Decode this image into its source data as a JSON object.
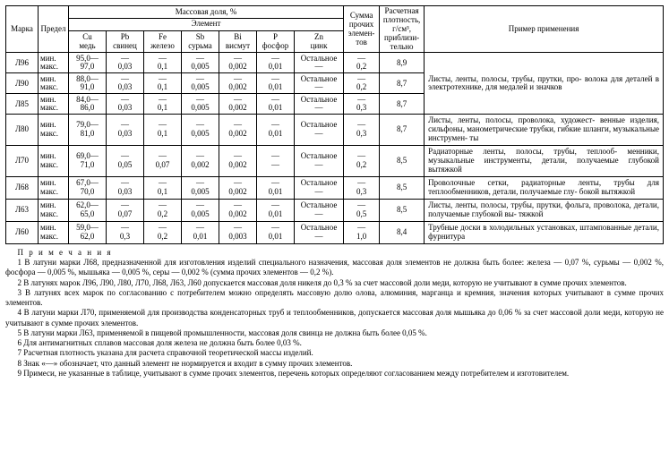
{
  "headers": {
    "marka": "Марка",
    "predel": "Предел",
    "mass_fraction": "Массовая доля, %",
    "element": "Элемент",
    "sum_other": "Сумма прочих элемен-\nтов",
    "density": "Расчетная плотность, г/см³, приблизи-\nтельно",
    "application": "Пример применения",
    "cols": {
      "cu": {
        "sym": "Cu",
        "name": "медь"
      },
      "pb": {
        "sym": "Pb",
        "name": "свинец"
      },
      "fe": {
        "sym": "Fe",
        "name": "железо"
      },
      "sb": {
        "sym": "Sb",
        "name": "сурьма"
      },
      "bi": {
        "sym": "Bi",
        "name": "висмут"
      },
      "p": {
        "sym": "P",
        "name": "фосфор"
      },
      "zn": {
        "sym": "Zn",
        "name": "цинк"
      }
    },
    "min": "мин.",
    "max": "макс."
  },
  "rows": [
    {
      "marka": "Л96",
      "cu_min": "95,0—",
      "cu_max": "97,0",
      "pb": "—\n0,03",
      "fe": "—\n0,1",
      "sb": "—\n0,005",
      "bi": "—\n0,002",
      "p": "—\n0,01",
      "zn": "Остальное\n—",
      "sum": "—\n0,2",
      "dens": "8,9",
      "app_rowspan": 3,
      "app": "Листы, ленты, полосы, трубы, прутки, про-\nволока для деталей в электротехнике, для медалей и значков"
    },
    {
      "marka": "Л90",
      "cu_min": "88,0—",
      "cu_max": "91,0",
      "pb": "—\n0,03",
      "fe": "—\n0,1",
      "sb": "—\n0,005",
      "bi": "—\n0,002",
      "p": "—\n0,01",
      "zn": "Остальное\n—",
      "sum": "—\n0,2",
      "dens": "8,7"
    },
    {
      "marka": "Л85",
      "cu_min": "84,0—",
      "cu_max": "86,0",
      "pb": "—\n0,03",
      "fe": "—\n0,1",
      "sb": "—\n0,005",
      "bi": "—\n0,002",
      "p": "—\n0,01",
      "zn": "Остальное\n—",
      "sum": "—\n0,3",
      "dens": "8,7"
    },
    {
      "marka": "Л80",
      "cu_min": "79,0—",
      "cu_max": "81,0",
      "pb": "—\n0,03",
      "fe": "—\n0,1",
      "sb": "—\n0,005",
      "bi": "—\n0,002",
      "p": "—\n0,01",
      "zn": "Остальное\n—",
      "sum": "—\n0,3",
      "dens": "8,7",
      "app": "Листы, ленты, полосы, проволока, художест-\nвенные изделия, сильфоны, манометрические трубки, гибкие шланги, музыкальные инструмен-\nты"
    },
    {
      "marka": "Л70",
      "cu_min": "69,0—",
      "cu_max": "71,0",
      "pb": "—\n0,05",
      "fe": "—\n0,07",
      "sb": "—\n0,002",
      "bi": "—\n0,002",
      "p": "—\n—",
      "zn": "Остальное\n—",
      "sum": "—\n0,2",
      "dens": "8,5",
      "app": "Радиаторные ленты, полосы, трубы, теплооб-\nменники, музыкальные инструменты, детали, получаемые глубокой вытяжкой"
    },
    {
      "marka": "Л68",
      "cu_min": "67,0—",
      "cu_max": "70,0",
      "pb": "—\n0,03",
      "fe": "—\n0,1",
      "sb": "—\n0,005",
      "bi": "—\n0,002",
      "p": "—\n0,01",
      "zn": "Остальное\n—",
      "sum": "—\n0,3",
      "dens": "8,5",
      "app": "Проволочные сетки, радиаторные ленты, трубы для теплообменников, детали, получаемые глу-\nбокой вытяжкой"
    },
    {
      "marka": "Л63",
      "cu_min": "62,0—",
      "cu_max": "65,0",
      "pb": "—\n0,07",
      "fe": "—\n0,2",
      "sb": "—\n0,005",
      "bi": "—\n0,002",
      "p": "—\n0,01",
      "zn": "Остальное\n—",
      "sum": "—\n0,5",
      "dens": "8,5",
      "app": "Листы, ленты, полосы, трубы, прутки, фольга, проволока, детали, получаемые глубокой вы-\nтяжкой"
    },
    {
      "marka": "Л60",
      "cu_min": "59,0—",
      "cu_max": "62,0",
      "pb": "—\n0,3",
      "fe": "—\n0,2",
      "sb": "—\n0,01",
      "bi": "—\n0,003",
      "p": "—\n0,01",
      "zn": "Остальное\n—",
      "sum": "—\n1,0",
      "dens": "8,4",
      "app": "Трубные доски в холодильных установках, штампованные детали, фурнитура"
    }
  ],
  "notes_title": "П р и м е ч а н и я",
  "notes": [
    "1 В латуни марки Л68, предназначенной для изготовления изделий специального назначения, массовая доля элементов не должна быть более: железа — 0,07 %, сурьмы — 0,002 %, фосфора — 0,005 %, мышьяка — 0,005 %, серы — 0,002 % (сумма прочих элементов — 0,2 %).",
    "2 В латунях марок Л96, Л90, Л80, Л70, Л68, Л63, Л60 допускается массовая доля никеля до 0,3 % за счет массовой доли меди, которую не учитывают в сумме прочих элементов.",
    "3 В латунях всех марок по согласованию с потребителем можно определять массовую долю олова, алюминия, марганца и кремния, значения которых учитывают в сумме прочих элементов.",
    "4 В латуни марки Л70, применяемой для производства конденсаторных труб и теплообменников, допускается массовая доля мышьяка до 0,06 % за счет массовой доли меди, которую не учитывают в сумме прочих элементов.",
    "5 В латуни марки Л63, применяемой в пищевой промышленности, массовая доля свинца не должна быть более 0,05 %.",
    "6 Для антимагнитных сплавов массовая доля железа не должна быть более 0,03 %.",
    "7 Расчетная плотность указана для расчета справочной теоретической массы изделий.",
    "8 Знак «—» обозначает, что данный элемент не нормируется и входит в сумму прочих элементов.",
    "9 Примеси, не указанные в таблице, учитывают в сумме прочих элементов, перечень которых определяют согласованием между потребителем и изготовителем."
  ]
}
